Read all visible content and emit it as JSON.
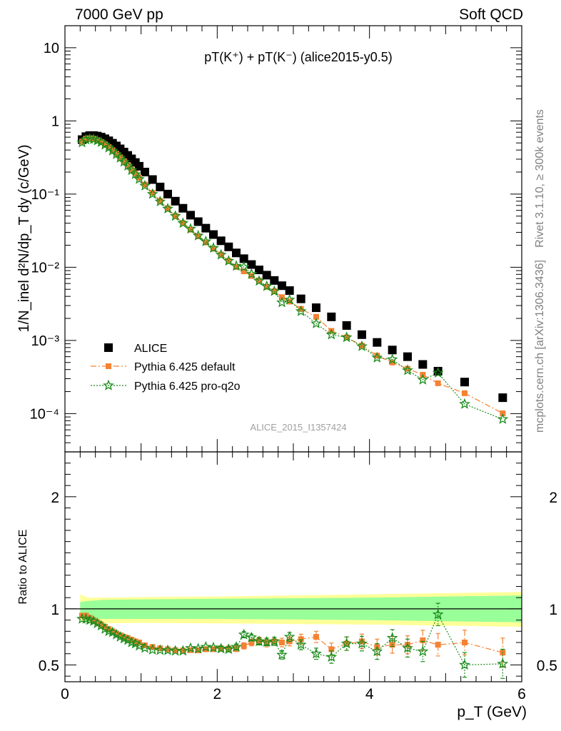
{
  "header": {
    "left": "7000 GeV pp",
    "right": "Soft QCD"
  },
  "side_labels": {
    "top": "Rivet 3.1.10, ≥ 300k events",
    "bottom": "mcplots.cern.ch [arXiv:1306.3436]"
  },
  "watermark": "ALICE_2015_I1357424",
  "colors": {
    "alice": "#000000",
    "default": "#f58232",
    "proq2o": "#1a8c1a",
    "band_inner": "#99ff99",
    "band_outer": "#ffff99"
  },
  "chart_data": [
    {
      "type": "scatter",
      "panel": "main",
      "title": "pT(K⁺) + pT(K⁻) (alice2015-y0.5)",
      "ylabel": "1/N_inel d²N/dp_T dy (c/GeV)",
      "yscale": "log",
      "ylim": [
        3e-05,
        20
      ],
      "xlim": [
        0,
        6
      ],
      "x_ticks": [
        0,
        2,
        4,
        6
      ],
      "y_tick_labels": [
        "10",
        "1",
        "10⁻¹",
        "10⁻²",
        "10⁻³",
        "10⁻⁴"
      ],
      "legend_position": "bottom-left",
      "x": [
        0.225,
        0.275,
        0.325,
        0.375,
        0.425,
        0.475,
        0.525,
        0.575,
        0.625,
        0.675,
        0.725,
        0.775,
        0.825,
        0.875,
        0.925,
        0.975,
        1.05,
        1.15,
        1.25,
        1.35,
        1.45,
        1.55,
        1.65,
        1.75,
        1.85,
        1.95,
        2.05,
        2.15,
        2.25,
        2.35,
        2.45,
        2.55,
        2.65,
        2.75,
        2.85,
        2.95,
        3.1,
        3.3,
        3.5,
        3.7,
        3.9,
        4.1,
        4.3,
        4.5,
        4.7,
        4.9,
        5.25,
        5.75
      ],
      "series": [
        {
          "name": "ALICE",
          "marker": "square",
          "values": [
            0.555,
            0.61,
            0.63,
            0.63,
            0.62,
            0.6,
            0.57,
            0.535,
            0.495,
            0.455,
            0.415,
            0.375,
            0.338,
            0.303,
            0.27,
            0.24,
            0.2,
            0.158,
            0.125,
            0.1,
            0.08,
            0.064,
            0.0515,
            0.042,
            0.0342,
            0.028,
            0.023,
            0.019,
            0.0157,
            0.0131,
            0.0109,
            0.0092,
            0.0078,
            0.0066,
            0.0056,
            0.0048,
            0.0037,
            0.0028,
            0.0021,
            0.0016,
            0.0012,
            0.00094,
            0.00074,
            0.0006,
            0.00047,
            0.00038,
            0.00027,
            0.000165
          ]
        },
        {
          "name": "Pythia 6.425 default",
          "marker": "filled-square",
          "line": "dash-dot",
          "values": [
            0.52,
            0.57,
            0.58,
            0.57,
            0.545,
            0.515,
            0.478,
            0.438,
            0.397,
            0.357,
            0.318,
            0.282,
            0.25,
            0.219,
            0.192,
            0.168,
            0.135,
            0.104,
            0.081,
            0.064,
            0.0505,
            0.0402,
            0.0326,
            0.0265,
            0.0218,
            0.0179,
            0.0149,
            0.0122,
            0.0101,
            0.0088,
            0.0076,
            0.0066,
            0.0054,
            0.0047,
            0.0039,
            0.0034,
            0.0027,
            0.0021,
            0.00135,
            0.0011,
            0.00085,
            0.00062,
            0.0005,
            0.00041,
            0.00034,
            0.00026,
            0.00019,
            0.000101
          ]
        },
        {
          "name": "Pythia 6.425 pro-q2o",
          "marker": "star",
          "line": "dotted",
          "values": [
            0.505,
            0.555,
            0.567,
            0.56,
            0.538,
            0.51,
            0.47,
            0.43,
            0.39,
            0.35,
            0.312,
            0.275,
            0.243,
            0.212,
            0.186,
            0.16,
            0.13,
            0.1,
            0.079,
            0.063,
            0.05,
            0.04,
            0.0335,
            0.027,
            0.0225,
            0.0183,
            0.0148,
            0.0122,
            0.0104,
            0.0101,
            0.0081,
            0.0065,
            0.0055,
            0.0047,
            0.0033,
            0.0036,
            0.0025,
            0.0017,
            0.0012,
            0.0011,
            0.00083,
            0.00058,
            0.00055,
            0.00039,
            0.00029,
            0.00036,
            0.000135,
            8.4e-05
          ]
        }
      ]
    },
    {
      "type": "scatter",
      "panel": "ratio",
      "ylabel": "Ratio to ALICE",
      "xlabel": "p_T (GeV)",
      "xlim": [
        0,
        6
      ],
      "ylim": [
        0.35,
        2.4
      ],
      "x_ticks": [
        0,
        2,
        4,
        6
      ],
      "y_ticks": [
        0.5,
        1,
        2
      ],
      "x": [
        0.225,
        0.275,
        0.325,
        0.375,
        0.425,
        0.475,
        0.525,
        0.575,
        0.625,
        0.675,
        0.725,
        0.775,
        0.825,
        0.875,
        0.925,
        0.975,
        1.05,
        1.15,
        1.25,
        1.35,
        1.45,
        1.55,
        1.65,
        1.75,
        1.85,
        1.95,
        2.05,
        2.15,
        2.25,
        2.35,
        2.45,
        2.55,
        2.65,
        2.75,
        2.85,
        2.95,
        3.1,
        3.3,
        3.5,
        3.7,
        3.9,
        4.1,
        4.3,
        4.5,
        4.7,
        4.9,
        5.25,
        5.75
      ],
      "bands": {
        "x": [
          0.2,
          0.3,
          0.5,
          1.0,
          2.0,
          3.0,
          4.0,
          5.0,
          6.0
        ],
        "inner_lo": [
          0.93,
          0.92,
          0.91,
          0.91,
          0.91,
          0.905,
          0.9,
          0.89,
          0.88
        ],
        "inner_hi": [
          1.06,
          1.07,
          1.08,
          1.085,
          1.09,
          1.095,
          1.1,
          1.11,
          1.12
        ],
        "outer_lo": [
          0.9,
          0.88,
          0.87,
          0.875,
          0.87,
          0.865,
          0.86,
          0.85,
          0.84
        ],
        "outer_hi": [
          1.13,
          1.1,
          1.1,
          1.105,
          1.11,
          1.12,
          1.13,
          1.14,
          1.15
        ]
      },
      "series": [
        {
          "name": "Pythia 6.425 default",
          "values": [
            0.94,
            0.94,
            0.92,
            0.9,
            0.88,
            0.86,
            0.84,
            0.82,
            0.8,
            0.78,
            0.765,
            0.75,
            0.74,
            0.725,
            0.71,
            0.7,
            0.675,
            0.66,
            0.648,
            0.64,
            0.632,
            0.628,
            0.632,
            0.63,
            0.64,
            0.64,
            0.648,
            0.645,
            0.645,
            0.67,
            0.7,
            0.715,
            0.695,
            0.71,
            0.7,
            0.71,
            0.73,
            0.75,
            0.64,
            0.69,
            0.71,
            0.66,
            0.68,
            0.68,
            0.72,
            0.68,
            0.7,
            0.61
          ]
        },
        {
          "name": "Pythia 6.425 pro-q2o",
          "values": [
            0.91,
            0.91,
            0.9,
            0.89,
            0.87,
            0.85,
            0.82,
            0.8,
            0.79,
            0.77,
            0.75,
            0.735,
            0.72,
            0.7,
            0.69,
            0.67,
            0.65,
            0.635,
            0.632,
            0.63,
            0.625,
            0.625,
            0.65,
            0.645,
            0.66,
            0.655,
            0.645,
            0.64,
            0.66,
            0.77,
            0.745,
            0.71,
            0.705,
            0.71,
            0.59,
            0.75,
            0.68,
            0.6,
            0.57,
            0.69,
            0.69,
            0.62,
            0.74,
            0.65,
            0.62,
            0.95,
            0.5,
            0.51
          ]
        }
      ],
      "errors": [
        0.01,
        0.01,
        0.01,
        0.01,
        0.01,
        0.01,
        0.01,
        0.01,
        0.01,
        0.01,
        0.01,
        0.01,
        0.01,
        0.01,
        0.01,
        0.01,
        0.012,
        0.012,
        0.014,
        0.014,
        0.015,
        0.016,
        0.017,
        0.018,
        0.019,
        0.02,
        0.022,
        0.024,
        0.026,
        0.028,
        0.03,
        0.032,
        0.034,
        0.036,
        0.038,
        0.04,
        0.044,
        0.05,
        0.055,
        0.06,
        0.065,
        0.07,
        0.075,
        0.08,
        0.09,
        0.1,
        0.11,
        0.13
      ]
    }
  ]
}
